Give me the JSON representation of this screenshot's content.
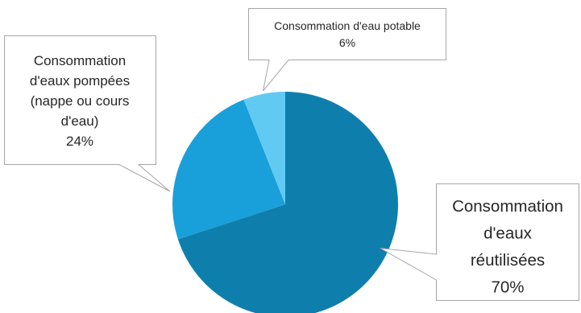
{
  "chart_data": {
    "type": "pie",
    "slices": [
      {
        "label_lines": [
          "Consommation",
          "d'eaux",
          "réutilisées"
        ],
        "value": 70,
        "value_label": "70%",
        "color": "#0e7fad"
      },
      {
        "label_lines": [
          "Consommation",
          "d'eaux pompées",
          "(nappe ou cours",
          "d'eau)"
        ],
        "value": 24,
        "value_label": "24%",
        "color": "#19a0da"
      },
      {
        "label_lines": [
          "Consommation d'eau potable"
        ],
        "value": 6,
        "value_label": "6%",
        "color": "#61caf2"
      }
    ]
  }
}
